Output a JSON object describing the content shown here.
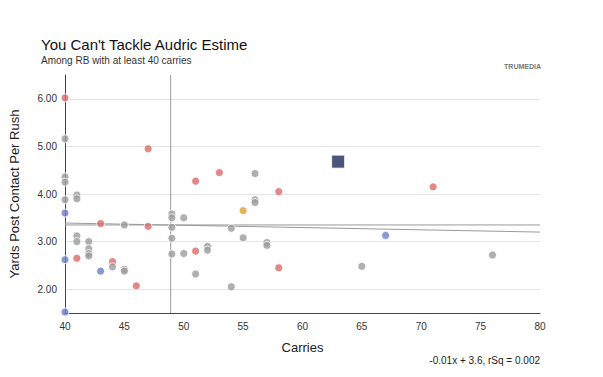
{
  "chart_data": {
    "type": "scatter",
    "title": "You Can't Tackle Audric Estime",
    "subtitle": "Among RB with at least 40 carries",
    "x_label": "Carries",
    "y_label": "Yards Post Contact Per Rush",
    "annotations": [
      "-0.01x + 3.6, rSq = 0.002",
      "TRUMEDIA"
    ],
    "xlim": [
      40,
      80
    ],
    "xticks": [
      40,
      45,
      50,
      55,
      60,
      65,
      70,
      75,
      80
    ],
    "ylim": [
      1.5,
      6.5
    ],
    "yticks": [
      {
        "value": 2,
        "label": "2.00"
      },
      {
        "value": 3,
        "label": "3.00"
      },
      {
        "value": 4,
        "label": "4.00"
      },
      {
        "value": 5,
        "label": "5.00"
      },
      {
        "value": 6,
        "label": "6.00"
      }
    ],
    "grid": true,
    "series": [
      {
        "type": "scatter",
        "marker": "circle",
        "color": "#9b9b9b",
        "x": [
          40,
          40,
          40,
          40,
          40,
          40,
          40,
          40,
          41,
          41,
          41,
          41,
          41,
          42,
          42,
          42,
          42,
          43,
          43,
          44,
          44,
          45,
          45,
          45,
          46,
          47,
          47,
          49,
          49,
          49,
          49,
          49,
          50,
          50,
          51,
          51,
          51,
          52,
          52,
          53,
          54,
          54,
          55,
          55,
          56,
          56,
          56,
          57,
          57,
          58,
          58,
          65,
          67,
          71,
          76
        ],
        "values": [
          6.02,
          5.16,
          4.36,
          4.25,
          3.88,
          3.6,
          2.62,
          1.52,
          3.98,
          3.9,
          3.12,
          3.0,
          2.65,
          3.0,
          2.85,
          2.75,
          2.7,
          3.38,
          2.38,
          2.58,
          2.47,
          3.35,
          2.42,
          2.38,
          2.07,
          4.95,
          3.32,
          3.58,
          3.5,
          3.3,
          3.07,
          2.74,
          3.5,
          2.75,
          4.27,
          2.8,
          2.32,
          2.9,
          2.82,
          4.45,
          3.28,
          2.05,
          3.65,
          3.08,
          4.43,
          3.88,
          3.82,
          2.98,
          2.92,
          4.05,
          2.45,
          2.48,
          3.13,
          4.15,
          2.72
        ],
        "colors": [
          "#d96b6b",
          "#9b9b9b",
          "#9b9b9b",
          "#9b9b9b",
          "#9b9b9b",
          "#6b7fc4",
          "#6b7fc4",
          "#6b7fc4",
          "#9b9b9b",
          "#9b9b9b",
          "#9b9b9b",
          "#9b9b9b",
          "#d96b6b",
          "#9b9b9b",
          "#9b9b9b",
          "#9b9b9b",
          "#9b9b9b",
          "#d96b6b",
          "#6b7fc4",
          "#d96b6b",
          "#9b9b9b",
          "#9b9b9b",
          "#9b9b9b",
          "#9b9b9b",
          "#d96b6b",
          "#d96b6b",
          "#d96b6b",
          "#9b9b9b",
          "#9b9b9b",
          "#9b9b9b",
          "#9b9b9b",
          "#9b9b9b",
          "#9b9b9b",
          "#9b9b9b",
          "#d96b6b",
          "#d96b6b",
          "#9b9b9b",
          "#9b9b9b",
          "#9b9b9b",
          "#d96b6b",
          "#9b9b9b",
          "#9b9b9b",
          "#e0a030",
          "#9b9b9b",
          "#9b9b9b",
          "#9b9b9b",
          "#9b9b9b",
          "#9b9b9b",
          "#9b9b9b",
          "#d96b6b",
          "#d96b6b",
          "#9b9b9b",
          "#6b7fc4",
          "#d96b6b",
          "#9b9b9b"
        ]
      },
      {
        "type": "scatter",
        "marker": "square",
        "color": "#1f2a5a",
        "x": [
          63
        ],
        "values": [
          4.68
        ]
      },
      {
        "type": "line",
        "line_style": "solid",
        "color": "#9a9a9a",
        "x": [
          40,
          80
        ],
        "values": [
          3.39,
          3.2
        ]
      },
      {
        "type": "line",
        "line_style": "solid",
        "color": "#9a9a9a",
        "x": [
          40,
          80
        ],
        "values": [
          3.35,
          3.35
        ]
      },
      {
        "type": "line",
        "line_style": "solid",
        "color": "#9a9a9a",
        "x": [
          48.9,
          48.9
        ],
        "values": [
          1.5,
          6.5
        ]
      }
    ]
  }
}
